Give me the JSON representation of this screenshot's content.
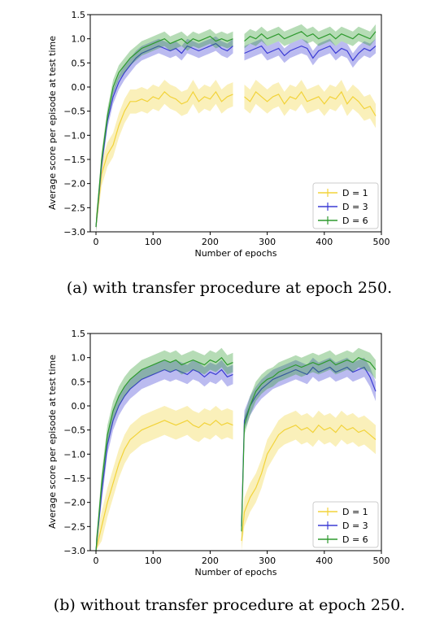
{
  "chart_data": [
    {
      "type": "line",
      "caption": "(a) with transfer procedure at epoch 250.",
      "xlabel": "Number of epochs",
      "ylabel": "Average score per episode at test time",
      "xlim": [
        -10,
        500
      ],
      "ylim": [
        -3.0,
        1.5
      ],
      "xticks": [
        "0",
        "100",
        "200",
        "300",
        "400",
        "500"
      ],
      "yticks": [
        "1.5",
        "1.0",
        "0.5",
        "0.0",
        "−0.5",
        "−1.0",
        "−1.5",
        "−2.0",
        "−2.5",
        "−3.0"
      ],
      "grid": false,
      "legend_position": "lower-right",
      "series": [
        {
          "name": "D = 1",
          "color": "#f2d33a",
          "x": [
            0,
            10,
            20,
            30,
            40,
            50,
            60,
            70,
            80,
            90,
            100,
            110,
            120,
            130,
            140,
            150,
            160,
            170,
            180,
            190,
            200,
            210,
            220,
            230,
            240,
            260,
            270,
            280,
            290,
            300,
            310,
            320,
            330,
            340,
            350,
            360,
            370,
            380,
            390,
            400,
            410,
            420,
            430,
            440,
            450,
            460,
            470,
            480,
            490
          ],
          "y": [
            -2.9,
            -1.8,
            -1.4,
            -1.2,
            -0.8,
            -0.5,
            -0.3,
            -0.3,
            -0.25,
            -0.3,
            -0.2,
            -0.25,
            -0.1,
            -0.2,
            -0.25,
            -0.35,
            -0.3,
            -0.1,
            -0.3,
            -0.2,
            -0.25,
            -0.1,
            -0.3,
            -0.2,
            -0.15,
            -0.2,
            -0.3,
            -0.1,
            -0.2,
            -0.3,
            -0.2,
            -0.15,
            -0.35,
            -0.2,
            -0.25,
            -0.1,
            -0.3,
            -0.25,
            -0.2,
            -0.35,
            -0.2,
            -0.25,
            -0.1,
            -0.35,
            -0.2,
            -0.3,
            -0.45,
            -0.4,
            -0.6
          ],
          "band": 0.25
        },
        {
          "name": "D = 3",
          "color": "#3b3bd4",
          "x": [
            0,
            10,
            20,
            30,
            40,
            50,
            60,
            70,
            80,
            90,
            100,
            110,
            120,
            130,
            140,
            150,
            160,
            170,
            180,
            190,
            200,
            210,
            220,
            230,
            240,
            260,
            270,
            280,
            290,
            300,
            310,
            320,
            330,
            340,
            350,
            360,
            370,
            380,
            390,
            400,
            410,
            420,
            430,
            440,
            450,
            460,
            470,
            480,
            490
          ],
          "y": [
            -2.9,
            -1.6,
            -0.7,
            -0.2,
            0.1,
            0.3,
            0.45,
            0.6,
            0.7,
            0.75,
            0.8,
            0.85,
            0.8,
            0.75,
            0.8,
            0.7,
            0.85,
            0.8,
            0.75,
            0.8,
            0.85,
            0.9,
            0.8,
            0.75,
            0.85,
            0.7,
            0.75,
            0.8,
            0.85,
            0.7,
            0.75,
            0.8,
            0.65,
            0.75,
            0.8,
            0.85,
            0.8,
            0.6,
            0.75,
            0.8,
            0.85,
            0.7,
            0.8,
            0.75,
            0.55,
            0.7,
            0.8,
            0.75,
            0.85
          ],
          "band": 0.15
        },
        {
          "name": "D = 6",
          "color": "#2e9a2e",
          "x": [
            0,
            10,
            20,
            30,
            40,
            50,
            60,
            70,
            80,
            90,
            100,
            110,
            120,
            130,
            140,
            150,
            160,
            170,
            180,
            190,
            200,
            210,
            220,
            230,
            240,
            260,
            270,
            280,
            290,
            300,
            310,
            320,
            330,
            340,
            350,
            360,
            370,
            380,
            390,
            400,
            410,
            420,
            430,
            440,
            450,
            460,
            470,
            480,
            490
          ],
          "y": [
            -2.9,
            -1.5,
            -0.6,
            0.0,
            0.3,
            0.45,
            0.6,
            0.7,
            0.8,
            0.85,
            0.9,
            0.95,
            1.0,
            0.9,
            0.95,
            1.0,
            0.9,
            1.0,
            0.95,
            1.0,
            1.05,
            0.95,
            1.0,
            0.95,
            1.0,
            0.95,
            1.05,
            1.0,
            1.1,
            1.0,
            1.05,
            1.1,
            1.0,
            1.05,
            1.1,
            1.15,
            1.05,
            1.1,
            1.0,
            1.05,
            1.1,
            1.0,
            1.1,
            1.05,
            1.0,
            1.1,
            1.05,
            1.0,
            1.15
          ],
          "band": 0.15
        }
      ],
      "gap": [
        243,
        250
      ]
    },
    {
      "type": "line",
      "caption": "(b) without transfer procedure at epoch 250.",
      "xlabel": "Number of epochs",
      "ylabel": "Average score per episode at test time",
      "xlim": [
        -10,
        500
      ],
      "ylim": [
        -3.0,
        1.5
      ],
      "xticks": [
        "0",
        "100",
        "200",
        "300",
        "400",
        "500"
      ],
      "yticks": [
        "1.5",
        "1.0",
        "0.5",
        "0.0",
        "−0.5",
        "−1.0",
        "−1.5",
        "−2.0",
        "−2.5",
        "−3.0"
      ],
      "grid": false,
      "legend_position": "lower-right",
      "series": [
        {
          "name": "D = 1",
          "color": "#f2d33a",
          "x": [
            0,
            10,
            20,
            30,
            40,
            50,
            60,
            70,
            80,
            90,
            100,
            110,
            120,
            130,
            140,
            150,
            160,
            170,
            180,
            190,
            200,
            210,
            220,
            230,
            240,
            255,
            260,
            270,
            280,
            290,
            300,
            310,
            320,
            330,
            340,
            350,
            360,
            370,
            380,
            390,
            400,
            410,
            420,
            430,
            440,
            450,
            460,
            470,
            480,
            490
          ],
          "y": [
            -3.0,
            -2.5,
            -2.0,
            -1.6,
            -1.2,
            -0.9,
            -0.7,
            -0.6,
            -0.5,
            -0.45,
            -0.4,
            -0.35,
            -0.3,
            -0.35,
            -0.4,
            -0.35,
            -0.3,
            -0.4,
            -0.45,
            -0.35,
            -0.4,
            -0.3,
            -0.4,
            -0.35,
            -0.4,
            -2.8,
            -2.2,
            -1.9,
            -1.7,
            -1.4,
            -1.0,
            -0.8,
            -0.6,
            -0.5,
            -0.45,
            -0.4,
            -0.5,
            -0.45,
            -0.55,
            -0.4,
            -0.5,
            -0.45,
            -0.55,
            -0.4,
            -0.5,
            -0.45,
            -0.55,
            -0.5,
            -0.6,
            -0.7
          ],
          "band": 0.3
        },
        {
          "name": "D = 3",
          "color": "#3b3bd4",
          "x": [
            0,
            10,
            20,
            30,
            40,
            50,
            60,
            70,
            80,
            90,
            100,
            110,
            120,
            130,
            140,
            150,
            160,
            170,
            180,
            190,
            200,
            210,
            220,
            230,
            240,
            255,
            260,
            270,
            280,
            290,
            300,
            310,
            320,
            330,
            340,
            350,
            360,
            370,
            380,
            390,
            400,
            410,
            420,
            430,
            440,
            450,
            460,
            470,
            480,
            490
          ],
          "y": [
            -3.0,
            -1.8,
            -0.8,
            -0.3,
            0.0,
            0.2,
            0.35,
            0.45,
            0.55,
            0.6,
            0.65,
            0.7,
            0.75,
            0.7,
            0.75,
            0.7,
            0.65,
            0.75,
            0.7,
            0.6,
            0.7,
            0.65,
            0.75,
            0.6,
            0.65,
            -2.5,
            -0.3,
            0.0,
            0.2,
            0.35,
            0.45,
            0.55,
            0.6,
            0.65,
            0.7,
            0.75,
            0.7,
            0.65,
            0.8,
            0.7,
            0.75,
            0.8,
            0.7,
            0.75,
            0.8,
            0.7,
            0.75,
            0.8,
            0.6,
            0.3
          ],
          "band": 0.2
        },
        {
          "name": "D = 6",
          "color": "#2e9a2e",
          "x": [
            0,
            10,
            20,
            30,
            40,
            50,
            60,
            70,
            80,
            90,
            100,
            110,
            120,
            130,
            140,
            150,
            160,
            170,
            180,
            190,
            200,
            210,
            220,
            230,
            240,
            255,
            260,
            270,
            280,
            290,
            300,
            310,
            320,
            330,
            340,
            350,
            360,
            370,
            380,
            390,
            400,
            410,
            420,
            430,
            440,
            450,
            460,
            470,
            480,
            490
          ],
          "y": [
            -3.0,
            -1.6,
            -0.6,
            -0.1,
            0.2,
            0.4,
            0.55,
            0.65,
            0.75,
            0.8,
            0.85,
            0.9,
            0.95,
            0.9,
            0.95,
            0.85,
            0.9,
            0.95,
            0.9,
            0.85,
            0.95,
            0.9,
            1.0,
            0.85,
            0.9,
            -2.6,
            -0.4,
            0.0,
            0.3,
            0.45,
            0.55,
            0.6,
            0.7,
            0.75,
            0.8,
            0.85,
            0.8,
            0.85,
            0.9,
            0.85,
            0.9,
            0.95,
            0.85,
            0.9,
            0.95,
            0.9,
            1.0,
            0.95,
            0.9,
            0.75
          ],
          "band": 0.2
        }
      ],
      "gap": [
        243,
        250
      ]
    }
  ]
}
